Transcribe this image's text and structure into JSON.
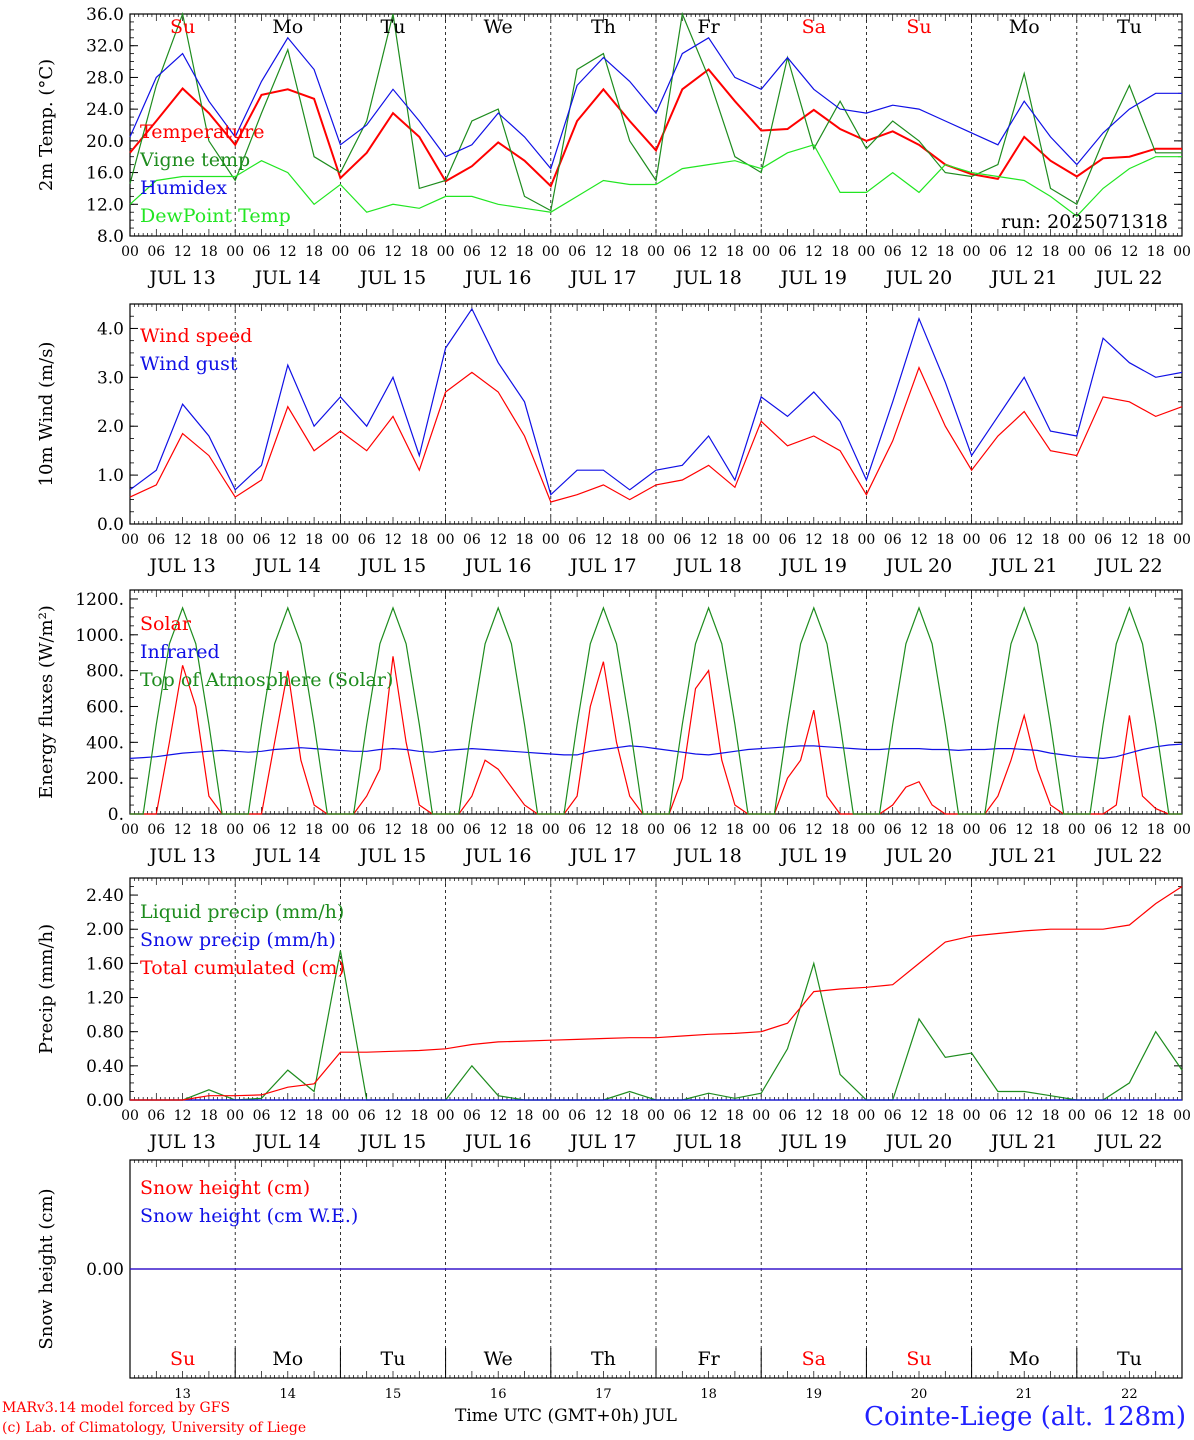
{
  "colors": {
    "red": "#ff0000",
    "green": "#1e8c1e",
    "blue": "#1010e6",
    "lightgreen": "#22e622",
    "axis": "#000000"
  },
  "run_label": "run: 2025071318",
  "day_names": [
    {
      "label": "Su",
      "color": "#ff0000"
    },
    {
      "label": "Mo",
      "color": "#000000"
    },
    {
      "label": "Tu",
      "color": "#000000"
    },
    {
      "label": "We",
      "color": "#000000"
    },
    {
      "label": "Th",
      "color": "#000000"
    },
    {
      "label": "Fr",
      "color": "#000000"
    },
    {
      "label": "Sa",
      "color": "#ff0000"
    },
    {
      "label": "Su",
      "color": "#ff0000"
    },
    {
      "label": "Mo",
      "color": "#000000"
    },
    {
      "label": "Tu",
      "color": "#000000"
    }
  ],
  "day_labels": [
    "JUL 13",
    "JUL 14",
    "JUL 15",
    "JUL 16",
    "JUL 17",
    "JUL 18",
    "JUL 19",
    "JUL 20",
    "JUL 21",
    "JUL 22"
  ],
  "day_numbers": [
    "13",
    "14",
    "15",
    "16",
    "17",
    "18",
    "19",
    "20",
    "21",
    "22"
  ],
  "hour_ticks": [
    "00",
    "06",
    "12",
    "18"
  ],
  "footer": {
    "model": "MARv3.14 model forced by GFS",
    "lab": "(c) Lab. of Climatology, University of Liege",
    "axis_title": "Time UTC (GMT+0h) JUL",
    "station": "Cointe-Liege (alt. 128m)"
  },
  "chart_data": [
    {
      "type": "line",
      "ylabel": "2m Temp. (°C)",
      "ylim": [
        8,
        36
      ],
      "yticks": [
        "8.0",
        "12.0",
        "16.0",
        "20.0",
        "24.0",
        "28.0",
        "32.0",
        "36.0"
      ],
      "x_hours": [
        0,
        6,
        12,
        18,
        24,
        30,
        36,
        42,
        48,
        54,
        60,
        66,
        72,
        78,
        84,
        90,
        96,
        102,
        108,
        114,
        120,
        126,
        132,
        138,
        144,
        150,
        156,
        162,
        168,
        174,
        180,
        186,
        192,
        198,
        204,
        210,
        216,
        222,
        228,
        234,
        240
      ],
      "series": [
        {
          "name": "Temperature",
          "color": "red",
          "values": [
            18.5,
            22.5,
            26.6,
            23.5,
            19.5,
            25.8,
            26.5,
            25.3,
            15.3,
            18.5,
            23.5,
            20.5,
            14.9,
            16.8,
            19.8,
            17.5,
            14.3,
            22.5,
            26.5,
            22.5,
            18.8,
            26.5,
            29.0,
            25.0,
            21.3,
            21.5,
            23.9,
            21.5,
            20.0,
            21.2,
            19.5,
            17.0,
            15.8,
            15.2,
            20.5,
            17.5,
            15.5,
            17.8,
            18.0,
            19.0,
            19.0
          ]
        },
        {
          "name": "Vigne temp",
          "color": "green",
          "values": [
            14.6,
            27.0,
            36.0,
            20.0,
            15.0,
            23.5,
            31.5,
            18.0,
            16.0,
            22.5,
            36.0,
            14.0,
            15.0,
            22.5,
            24.0,
            13.0,
            11.2,
            29.0,
            31.0,
            20.0,
            15.0,
            36.0,
            28.0,
            18.0,
            16.0,
            30.5,
            19.0,
            25.0,
            19.0,
            22.5,
            20.0,
            16.0,
            15.5,
            17.0,
            28.5,
            14.0,
            12.0,
            20.0,
            27.0,
            18.5,
            18.5
          ]
        },
        {
          "name": "Humidex",
          "color": "blue",
          "values": [
            20.5,
            28.0,
            31.0,
            25.0,
            20.5,
            27.5,
            33.0,
            29.0,
            19.5,
            22.0,
            26.5,
            22.5,
            18.0,
            19.5,
            23.5,
            20.5,
            16.5,
            27.0,
            30.5,
            27.5,
            23.5,
            31.0,
            33.0,
            28.0,
            26.5,
            30.5,
            26.5,
            24.0,
            23.5,
            24.5,
            24.0,
            22.5,
            21.0,
            19.5,
            25.0,
            20.5,
            17.0,
            21.0,
            24.0,
            26.0,
            26.0
          ]
        },
        {
          "name": "DewPoint Temp",
          "color": "lightgreen",
          "values": [
            12.0,
            15.0,
            15.5,
            15.5,
            15.5,
            17.5,
            16.0,
            12.0,
            14.5,
            11.0,
            12.0,
            11.5,
            13.0,
            13.0,
            12.0,
            11.5,
            11.0,
            13.0,
            15.0,
            14.5,
            14.5,
            16.5,
            17.0,
            17.5,
            16.5,
            18.5,
            19.5,
            13.5,
            13.5,
            16.0,
            13.5,
            17.0,
            16.0,
            15.5,
            15.0,
            13.0,
            10.5,
            14.0,
            16.5,
            18.0,
            18.0
          ]
        }
      ]
    },
    {
      "type": "line",
      "ylabel": "10m Wind (m/s)",
      "ylim": [
        0,
        4.5
      ],
      "yticks": [
        "0.0",
        "1.0",
        "2.0",
        "3.0",
        "4.0"
      ],
      "x_hours": [
        0,
        6,
        12,
        18,
        24,
        30,
        36,
        42,
        48,
        54,
        60,
        66,
        72,
        78,
        84,
        90,
        96,
        102,
        108,
        114,
        120,
        126,
        132,
        138,
        144,
        150,
        156,
        162,
        168,
        174,
        180,
        186,
        192,
        198,
        204,
        210,
        216,
        222,
        228,
        234,
        240
      ],
      "series": [
        {
          "name": "Wind speed",
          "color": "red",
          "values": [
            0.55,
            0.8,
            1.85,
            1.4,
            0.55,
            0.9,
            2.4,
            1.5,
            1.9,
            1.5,
            2.2,
            1.1,
            2.7,
            3.1,
            2.7,
            1.8,
            0.45,
            0.6,
            0.8,
            0.5,
            0.8,
            0.9,
            1.2,
            0.75,
            2.1,
            1.6,
            1.8,
            1.5,
            0.6,
            1.7,
            3.2,
            2.0,
            1.1,
            1.8,
            2.3,
            1.5,
            1.4,
            2.6,
            2.5,
            2.2,
            2.4
          ]
        },
        {
          "name": "Wind gust",
          "color": "blue",
          "values": [
            0.7,
            1.1,
            2.45,
            1.8,
            0.7,
            1.2,
            3.25,
            2.0,
            2.6,
            2.0,
            3.0,
            1.4,
            3.6,
            4.4,
            3.3,
            2.5,
            0.6,
            1.1,
            1.1,
            0.7,
            1.1,
            1.2,
            1.8,
            0.9,
            2.6,
            2.2,
            2.7,
            2.1,
            0.9,
            2.5,
            4.2,
            2.9,
            1.4,
            2.2,
            3.0,
            1.9,
            1.8,
            3.8,
            3.3,
            3.0,
            3.1
          ]
        }
      ]
    },
    {
      "type": "line",
      "ylabel": "Energy fluxes (W/m²)",
      "ylim": [
        0,
        1250
      ],
      "yticks": [
        "0.",
        "200.",
        "400.",
        "600.",
        "800.",
        "1000.",
        "1200."
      ],
      "x_hours": [
        0,
        3,
        6,
        9,
        12,
        15,
        18,
        21,
        24,
        27,
        30,
        33,
        36,
        39,
        42,
        45,
        48,
        51,
        54,
        57,
        60,
        63,
        66,
        69,
        72,
        75,
        78,
        81,
        84,
        87,
        90,
        93,
        96,
        99,
        102,
        105,
        108,
        111,
        114,
        117,
        120,
        123,
        126,
        129,
        132,
        135,
        138,
        141,
        144,
        147,
        150,
        153,
        156,
        159,
        162,
        165,
        168,
        171,
        174,
        177,
        180,
        183,
        186,
        189,
        192,
        195,
        198,
        201,
        204,
        207,
        210,
        213,
        216,
        219,
        222,
        225,
        228,
        231,
        234,
        237,
        240
      ],
      "series": [
        {
          "name": "Solar",
          "color": "red",
          "values": [
            0,
            0,
            0,
            400,
            830,
            600,
            100,
            0,
            0,
            0,
            0,
            400,
            800,
            300,
            50,
            0,
            0,
            0,
            100,
            250,
            880,
            400,
            50,
            0,
            0,
            0,
            100,
            300,
            250,
            150,
            50,
            0,
            0,
            0,
            100,
            600,
            850,
            400,
            100,
            0,
            0,
            0,
            200,
            700,
            800,
            300,
            50,
            0,
            0,
            0,
            200,
            300,
            580,
            100,
            0,
            0,
            0,
            0,
            50,
            150,
            180,
            50,
            0,
            0,
            0,
            0,
            100,
            300,
            550,
            250,
            50,
            0,
            0,
            0,
            0,
            50,
            550,
            100,
            30,
            0,
            0
          ]
        },
        {
          "name": "Infrared",
          "color": "blue",
          "values": [
            310,
            315,
            320,
            330,
            340,
            345,
            350,
            355,
            350,
            345,
            350,
            360,
            365,
            370,
            365,
            360,
            355,
            350,
            350,
            360,
            365,
            360,
            350,
            345,
            355,
            360,
            365,
            360,
            355,
            350,
            345,
            340,
            335,
            330,
            330,
            350,
            360,
            370,
            380,
            375,
            365,
            355,
            345,
            335,
            330,
            340,
            350,
            360,
            365,
            370,
            375,
            380,
            380,
            375,
            370,
            365,
            360,
            360,
            365,
            365,
            365,
            360,
            360,
            355,
            360,
            360,
            365,
            365,
            360,
            355,
            340,
            330,
            320,
            315,
            310,
            320,
            340,
            360,
            375,
            385,
            390
          ]
        },
        {
          "name": "Top of Atmosphere (Solar)",
          "color": "green",
          "values": [
            0,
            0,
            500,
            950,
            1150,
            950,
            500,
            0,
            0,
            0,
            500,
            950,
            1150,
            950,
            500,
            0,
            0,
            0,
            500,
            950,
            1150,
            950,
            500,
            0,
            0,
            0,
            500,
            950,
            1150,
            950,
            500,
            0,
            0,
            0,
            500,
            950,
            1150,
            950,
            500,
            0,
            0,
            0,
            500,
            950,
            1150,
            950,
            500,
            0,
            0,
            0,
            500,
            950,
            1150,
            950,
            500,
            0,
            0,
            0,
            500,
            950,
            1150,
            950,
            500,
            0,
            0,
            0,
            500,
            950,
            1150,
            950,
            500,
            0,
            0,
            0,
            500,
            950,
            1150,
            950,
            500,
            0,
            0
          ]
        }
      ]
    },
    {
      "type": "line",
      "ylabel": "Precip (mm/h)",
      "ylim": [
        0,
        2.6
      ],
      "yticks": [
        "0.00",
        "0.40",
        "0.80",
        "1.20",
        "1.60",
        "2.00",
        "2.40"
      ],
      "x_hours": [
        0,
        6,
        12,
        18,
        24,
        30,
        36,
        42,
        48,
        54,
        60,
        66,
        72,
        78,
        84,
        90,
        96,
        102,
        108,
        114,
        120,
        126,
        132,
        138,
        144,
        150,
        156,
        162,
        168,
        174,
        180,
        186,
        192,
        198,
        204,
        210,
        216,
        222,
        228,
        234,
        240
      ],
      "series": [
        {
          "name": "Liquid precip (mm/h)",
          "color": "green",
          "values": [
            0,
            0,
            0,
            0.12,
            0,
            0.02,
            0.35,
            0.1,
            1.75,
            0,
            0,
            0,
            0,
            0.4,
            0.05,
            0,
            0,
            0,
            0,
            0.1,
            0,
            0,
            0.08,
            0.02,
            0.08,
            0.6,
            1.6,
            0.3,
            0,
            0,
            0.95,
            0.5,
            0.55,
            0.1,
            0.1,
            0.05,
            0,
            0,
            0.2,
            0.8,
            0.35
          ]
        },
        {
          "name": "Snow precip (mm/h)",
          "color": "blue",
          "values": [
            0,
            0,
            0,
            0,
            0,
            0,
            0,
            0,
            0,
            0,
            0,
            0,
            0,
            0,
            0,
            0,
            0,
            0,
            0,
            0,
            0,
            0,
            0,
            0,
            0,
            0,
            0,
            0,
            0,
            0,
            0,
            0,
            0,
            0,
            0,
            0,
            0,
            0,
            0,
            0,
            0
          ]
        },
        {
          "name": "Total cumulated (cm)",
          "color": "red",
          "values": [
            0,
            0,
            0,
            0.05,
            0.05,
            0.06,
            0.15,
            0.19,
            0.56,
            0.56,
            0.57,
            0.58,
            0.6,
            0.65,
            0.68,
            0.69,
            0.7,
            0.71,
            0.72,
            0.73,
            0.73,
            0.75,
            0.77,
            0.78,
            0.8,
            0.9,
            1.27,
            1.3,
            1.32,
            1.35,
            1.6,
            1.85,
            1.92,
            1.95,
            1.98,
            2.0,
            2.0,
            2.0,
            2.05,
            2.3,
            2.5
          ]
        }
      ]
    },
    {
      "type": "line",
      "ylabel": "Snow height (cm)",
      "ylim": [
        -1,
        1
      ],
      "yticks": [
        "0.00"
      ],
      "x_hours": [
        0,
        240
      ],
      "series": [
        {
          "name": "Snow height (cm)",
          "color": "red",
          "values": [
            0,
            0
          ]
        },
        {
          "name": "Snow height (cm W.E.)",
          "color": "blue",
          "values": [
            0,
            0
          ]
        }
      ]
    }
  ]
}
